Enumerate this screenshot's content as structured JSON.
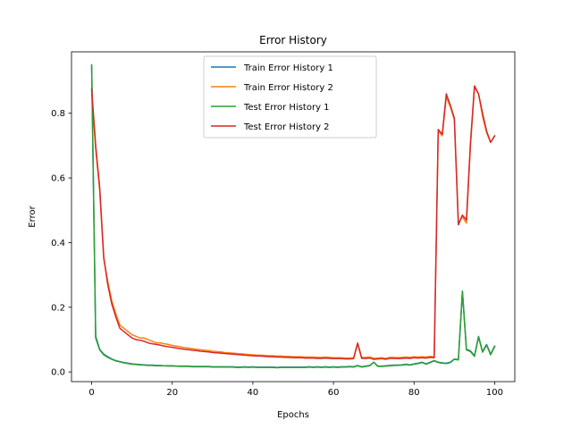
{
  "chart_data": {
    "type": "line",
    "title": "Error History",
    "xlabel": "Epochs",
    "ylabel": "Error",
    "xlim": [
      -5,
      105
    ],
    "ylim": [
      -0.03,
      0.99
    ],
    "xticks": [
      0,
      20,
      40,
      60,
      80,
      100
    ],
    "yticks": [
      0.0,
      0.2,
      0.4,
      0.6,
      0.8
    ],
    "grid": false,
    "legend_position": "top-center",
    "x": [
      0,
      1,
      2,
      3,
      4,
      5,
      6,
      7,
      8,
      9,
      10,
      11,
      12,
      13,
      14,
      15,
      16,
      17,
      18,
      19,
      20,
      21,
      22,
      23,
      24,
      25,
      26,
      27,
      28,
      29,
      30,
      31,
      32,
      33,
      34,
      35,
      36,
      37,
      38,
      39,
      40,
      41,
      42,
      43,
      44,
      45,
      46,
      47,
      48,
      49,
      50,
      51,
      52,
      53,
      54,
      55,
      56,
      57,
      58,
      59,
      60,
      61,
      62,
      63,
      64,
      65,
      66,
      67,
      68,
      69,
      70,
      71,
      72,
      73,
      74,
      75,
      76,
      77,
      78,
      79,
      80,
      81,
      82,
      83,
      84,
      85,
      86,
      87,
      88,
      89,
      90,
      91,
      92,
      93,
      94,
      95,
      96,
      97,
      98,
      99,
      100
    ],
    "series": [
      {
        "name": "Train Error History 1",
        "color": "#1f77b4",
        "values": [
          0.945,
          0.11,
          0.07,
          0.055,
          0.047,
          0.04,
          0.035,
          0.032,
          0.029,
          0.027,
          0.025,
          0.024,
          0.023,
          0.022,
          0.021,
          0.021,
          0.02,
          0.02,
          0.019,
          0.019,
          0.019,
          0.018,
          0.018,
          0.018,
          0.018,
          0.017,
          0.017,
          0.017,
          0.017,
          0.017,
          0.016,
          0.016,
          0.016,
          0.016,
          0.016,
          0.016,
          0.015,
          0.015,
          0.016,
          0.015,
          0.016,
          0.015,
          0.015,
          0.015,
          0.015,
          0.015,
          0.014,
          0.015,
          0.015,
          0.015,
          0.015,
          0.015,
          0.015,
          0.015,
          0.016,
          0.015,
          0.016,
          0.015,
          0.016,
          0.015,
          0.016,
          0.015,
          0.016,
          0.016,
          0.017,
          0.016,
          0.02,
          0.016,
          0.018,
          0.02,
          0.03,
          0.018,
          0.018,
          0.019,
          0.02,
          0.021,
          0.021,
          0.022,
          0.024,
          0.022,
          0.025,
          0.027,
          0.03,
          0.025,
          0.03,
          0.035,
          0.03,
          0.028,
          0.027,
          0.03,
          0.04,
          0.038,
          0.25,
          0.07,
          0.065,
          0.05,
          0.11,
          0.063,
          0.085,
          0.055,
          0.08
        ]
      },
      {
        "name": "Train Error History 2",
        "color": "#ff7f0e",
        "values": [
          0.87,
          0.69,
          0.56,
          0.35,
          0.28,
          0.22,
          0.18,
          0.145,
          0.135,
          0.125,
          0.115,
          0.11,
          0.105,
          0.105,
          0.1,
          0.095,
          0.09,
          0.09,
          0.087,
          0.085,
          0.082,
          0.08,
          0.078,
          0.075,
          0.074,
          0.072,
          0.07,
          0.069,
          0.067,
          0.066,
          0.064,
          0.063,
          0.062,
          0.06,
          0.059,
          0.058,
          0.057,
          0.056,
          0.055,
          0.054,
          0.053,
          0.052,
          0.052,
          0.051,
          0.05,
          0.05,
          0.049,
          0.049,
          0.048,
          0.048,
          0.047,
          0.047,
          0.047,
          0.046,
          0.046,
          0.046,
          0.045,
          0.045,
          0.046,
          0.045,
          0.044,
          0.044,
          0.044,
          0.043,
          0.043,
          0.044,
          0.09,
          0.045,
          0.045,
          0.046,
          0.042,
          0.043,
          0.044,
          0.042,
          0.045,
          0.045,
          0.044,
          0.045,
          0.046,
          0.045,
          0.047,
          0.046,
          0.047,
          0.046,
          0.048,
          0.047,
          0.745,
          0.73,
          0.85,
          0.82,
          0.78,
          0.46,
          0.48,
          0.46,
          0.7,
          0.88,
          0.86,
          0.79,
          0.74,
          0.71,
          0.73
        ]
      },
      {
        "name": "Test Error History 1",
        "color": "#2ca02c",
        "values": [
          0.95,
          0.105,
          0.068,
          0.053,
          0.045,
          0.039,
          0.034,
          0.031,
          0.028,
          0.026,
          0.024,
          0.023,
          0.022,
          0.021,
          0.02,
          0.02,
          0.019,
          0.019,
          0.019,
          0.018,
          0.018,
          0.018,
          0.017,
          0.017,
          0.017,
          0.016,
          0.016,
          0.016,
          0.016,
          0.016,
          0.015,
          0.015,
          0.015,
          0.015,
          0.015,
          0.015,
          0.014,
          0.014,
          0.015,
          0.014,
          0.015,
          0.014,
          0.014,
          0.014,
          0.014,
          0.014,
          0.013,
          0.014,
          0.014,
          0.014,
          0.014,
          0.014,
          0.014,
          0.014,
          0.015,
          0.014,
          0.015,
          0.014,
          0.015,
          0.014,
          0.015,
          0.014,
          0.015,
          0.015,
          0.016,
          0.015,
          0.019,
          0.015,
          0.017,
          0.019,
          0.03,
          0.017,
          0.017,
          0.018,
          0.019,
          0.02,
          0.02,
          0.021,
          0.023,
          0.021,
          0.024,
          0.026,
          0.029,
          0.024,
          0.029,
          0.034,
          0.029,
          0.027,
          0.026,
          0.029,
          0.039,
          0.037,
          0.248,
          0.068,
          0.063,
          0.048,
          0.108,
          0.061,
          0.083,
          0.053,
          0.078
        ]
      },
      {
        "name": "Test Error History 2",
        "color": "#d62728",
        "values": [
          0.875,
          0.7,
          0.57,
          0.355,
          0.27,
          0.21,
          0.17,
          0.135,
          0.125,
          0.115,
          0.105,
          0.1,
          0.098,
          0.095,
          0.09,
          0.087,
          0.085,
          0.083,
          0.08,
          0.078,
          0.076,
          0.074,
          0.072,
          0.07,
          0.069,
          0.067,
          0.066,
          0.064,
          0.063,
          0.062,
          0.06,
          0.059,
          0.058,
          0.057,
          0.056,
          0.055,
          0.054,
          0.053,
          0.052,
          0.051,
          0.05,
          0.049,
          0.049,
          0.048,
          0.047,
          0.047,
          0.046,
          0.046,
          0.045,
          0.045,
          0.044,
          0.044,
          0.044,
          0.043,
          0.043,
          0.043,
          0.042,
          0.042,
          0.043,
          0.042,
          0.041,
          0.041,
          0.041,
          0.04,
          0.04,
          0.041,
          0.088,
          0.042,
          0.042,
          0.043,
          0.039,
          0.04,
          0.041,
          0.039,
          0.042,
          0.042,
          0.041,
          0.042,
          0.043,
          0.042,
          0.044,
          0.043,
          0.044,
          0.043,
          0.045,
          0.044,
          0.75,
          0.735,
          0.86,
          0.825,
          0.785,
          0.455,
          0.485,
          0.47,
          0.71,
          0.885,
          0.86,
          0.8,
          0.745,
          0.71,
          0.73
        ]
      }
    ]
  }
}
